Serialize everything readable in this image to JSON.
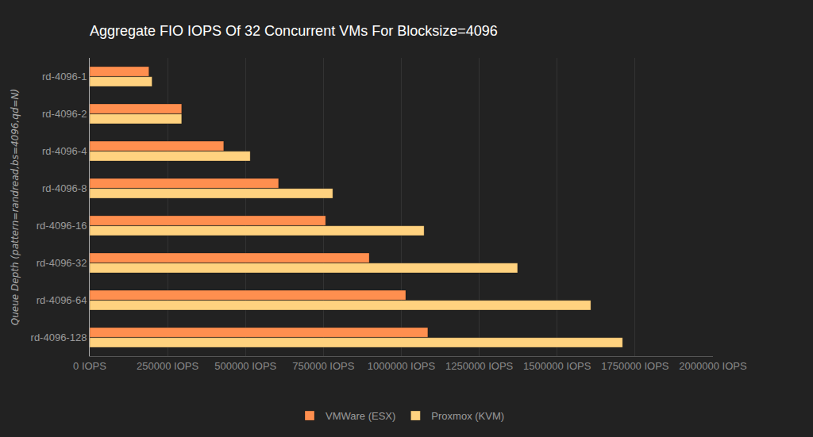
{
  "chart_data": {
    "type": "bar",
    "orientation": "horizontal",
    "title": "Aggregate FIO IOPS Of 32 Concurrent VMs For Blocksize=4096",
    "y_label": "Queue Depth (pattern=randread,bs=4096,qd=N)",
    "categories": [
      "rd-4096-1",
      "rd-4096-2",
      "rd-4096-4",
      "rd-4096-8",
      "rd-4096-16",
      "rd-4096-32",
      "rd-4096-64",
      "rd-4096-128"
    ],
    "series": [
      {
        "name": "VMWare (ESX)",
        "color": "#ff8f4f",
        "values": [
          190000,
          295000,
          430000,
          606000,
          757000,
          897000,
          1014000,
          1085000
        ]
      },
      {
        "name": "Proxmox (KVM)",
        "color": "#ffd27f",
        "values": [
          200000,
          295000,
          515000,
          780000,
          1073000,
          1373000,
          1608000,
          1710000
        ]
      }
    ],
    "xlim": [
      0,
      2000000
    ],
    "xticks": [
      {
        "value": 0,
        "label": "0 IOPS"
      },
      {
        "value": 250000,
        "label": "250000 IOPS"
      },
      {
        "value": 500000,
        "label": "500000 IOPS"
      },
      {
        "value": 750000,
        "label": "750000 IOPS"
      },
      {
        "value": 1000000,
        "label": "1000000 IOPS"
      },
      {
        "value": 1250000,
        "label": "1250000 IOPS"
      },
      {
        "value": 1500000,
        "label": "1500000 IOPS"
      },
      {
        "value": 1750000,
        "label": "1750000 IOPS"
      },
      {
        "value": 2000000,
        "label": "2000000 IOPS"
      }
    ],
    "grid": true,
    "legend": "bottom"
  }
}
